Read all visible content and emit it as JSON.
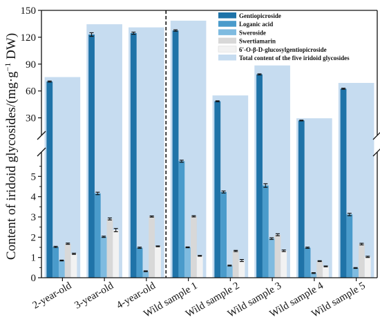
{
  "chart_data": {
    "type": "bar",
    "title": "",
    "xlabel": "",
    "ylabel": {
      "main": "Content of iridoid glycosides/(mg·g",
      "sup": "−1",
      "tail": " DW)"
    },
    "categories": [
      "2-year-old",
      "3-year-old",
      "4-year-old",
      "Wild sample 1",
      "Wild sample 2",
      "Wild sample 3",
      "Wild sample 4",
      "Wild sample 5"
    ],
    "y_axis": {
      "broken": true,
      "lower_range": [
        0,
        6
      ],
      "upper_range": [
        15,
        150
      ],
      "lower_ticks": [
        "0",
        "1",
        "2",
        "3",
        "4",
        "5"
      ],
      "upper_ticks": [
        "30",
        "60",
        "90",
        "120",
        "150"
      ]
    },
    "divider_after_category": 2,
    "legend_position": "top-right",
    "total": {
      "name": "Total content of the five iridoid glycosides",
      "color": "#c6dcf0",
      "values": [
        75.5,
        134.5,
        131,
        138.5,
        55,
        88.5,
        29.5,
        69
      ]
    },
    "series": [
      {
        "name": "Gentiopicroside",
        "color": "#1f73a8",
        "values": [
          70.5,
          123,
          124.5,
          127.5,
          48.5,
          78.5,
          27,
          62.5
        ],
        "errors": [
          0.6,
          2.0,
          1.2,
          0.8,
          0.5,
          0.6,
          0.4,
          0.6
        ]
      },
      {
        "name": "Loganic acid",
        "color": "#4a9bcb",
        "values": [
          1.52,
          4.16,
          1.48,
          5.75,
          4.23,
          4.55,
          1.48,
          3.12
        ],
        "errors": [
          0.03,
          0.06,
          0.03,
          0.05,
          0.05,
          0.09,
          0.03,
          0.06
        ]
      },
      {
        "name": "Sweroside",
        "color": "#7fbbe0",
        "values": [
          0.85,
          2.02,
          0.32,
          1.5,
          0.6,
          1.93,
          0.23,
          0.48
        ],
        "errors": [
          0.02,
          0.03,
          0.02,
          0.02,
          0.02,
          0.04,
          0.02,
          0.02
        ]
      },
      {
        "name": "Swertiamarin",
        "color": "#d8d8d8",
        "values": [
          1.68,
          2.9,
          3.02,
          3.03,
          1.32,
          2.12,
          0.82,
          1.66
        ],
        "errors": [
          0.03,
          0.05,
          0.03,
          0.03,
          0.03,
          0.05,
          0.02,
          0.04
        ]
      },
      {
        "name": "6'-O-β-D-glucosylgentiopicroside",
        "color": "#f2f2f2",
        "values": [
          1.18,
          2.35,
          1.55,
          1.08,
          0.85,
          1.33,
          0.56,
          1.03
        ],
        "errors": [
          0.03,
          0.08,
          0.02,
          0.02,
          0.05,
          0.04,
          0.02,
          0.03
        ]
      }
    ]
  }
}
